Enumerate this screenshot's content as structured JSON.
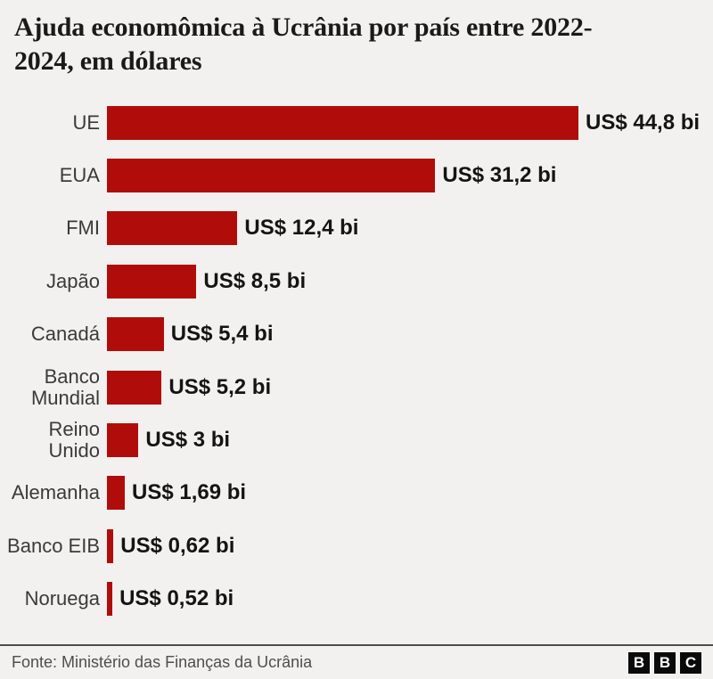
{
  "title": "Ajuda economômica à Ucrânia por país entre 2022-2024, em dólares",
  "chart_data": {
    "type": "bar",
    "orientation": "horizontal",
    "title": "Ajuda economômica à Ucrânia por país entre 2022-2024, em dólares",
    "categories": [
      "UE",
      "EUA",
      "FMI",
      "Japão",
      "Canadá",
      "Banco Mundial",
      "Reino Unido",
      "Alemanha",
      "Banco EIB",
      "Noruega"
    ],
    "values": [
      44.8,
      31.2,
      12.4,
      8.5,
      5.4,
      5.2,
      3,
      1.69,
      0.62,
      0.52
    ],
    "value_labels": [
      "US$ 44,8 bi",
      "US$ 31,2 bi",
      "US$ 12,4 bi",
      "US$ 8,5 bi",
      "US$ 5,4 bi",
      "US$ 5,2 bi",
      "US$ 3 bi",
      "US$ 1,69 bi",
      "US$ 0,62 bi",
      "US$ 0,52 bi"
    ],
    "unit": "US$ bi",
    "xlim": [
      0,
      44.8
    ],
    "grid": false,
    "legend": false,
    "bar_color": "#b00d0a"
  },
  "colors": {
    "background": "#f2f1ef",
    "bar": "#b00d0a",
    "title_text": "#1a1a1a",
    "category_text": "#3a3a3a",
    "value_text": "#141414",
    "footer_text": "#4e4e4e",
    "divider": "#4d4d4d",
    "logo_bg": "#0a0a0a"
  },
  "footer": {
    "source": "Fonte: Ministério das Finanças da Ucrânia",
    "logo_letters": [
      "B",
      "B",
      "C"
    ]
  }
}
